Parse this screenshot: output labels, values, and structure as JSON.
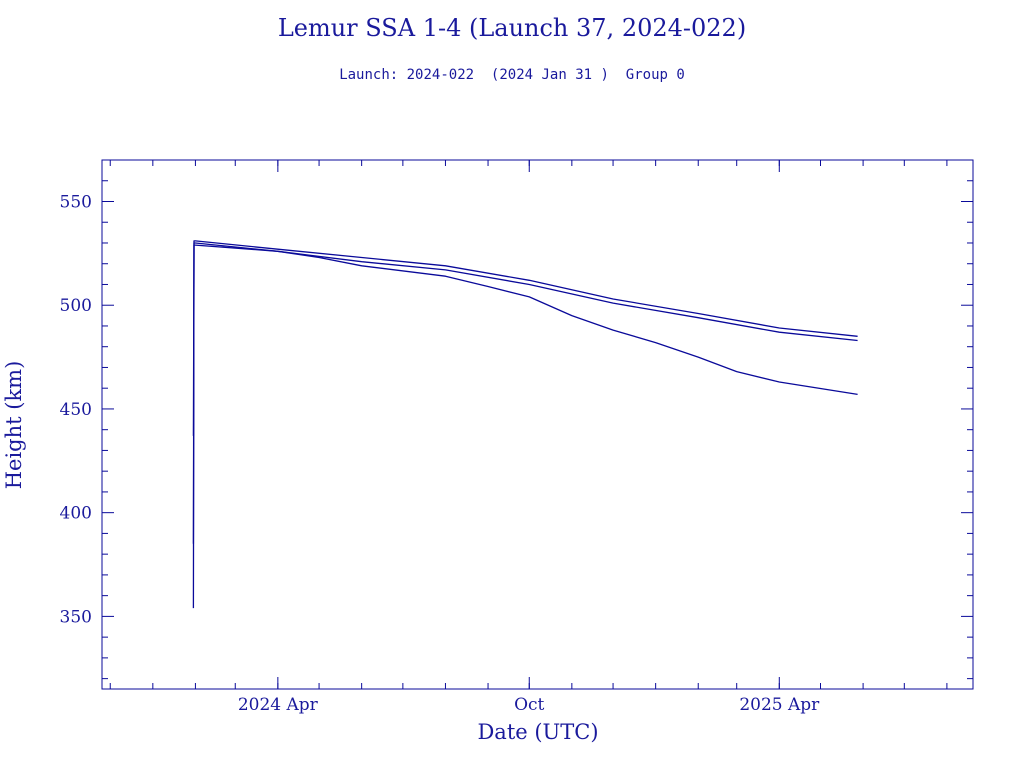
{
  "chart_data": {
    "type": "line",
    "title": "Lemur SSA 1-4 (Launch 37, 2024-022)",
    "subtitle": "Launch: 2024-022  (2024 Jan 31 )  Group 0",
    "xlabel": "Date (UTC)",
    "ylabel": "Height (km)",
    "xlim": [
      "2023-11-25",
      "2025-08-20"
    ],
    "ylim": [
      315,
      570
    ],
    "y_ticks": [
      350,
      400,
      450,
      500,
      550
    ],
    "x_ticks": [
      {
        "date": "2024-04-01",
        "label": "2024 Apr"
      },
      {
        "date": "2024-10-01",
        "label": "Oct"
      },
      {
        "date": "2025-04-01",
        "label": "2025 Apr"
      }
    ],
    "grid": false,
    "series": [
      {
        "x": [
          "2024-01-31",
          "2024-01-31",
          "2024-02-01",
          "2024-04-01",
          "2024-06-01",
          "2024-08-01",
          "2024-10-01",
          "2024-12-01",
          "2025-02-01",
          "2025-04-01",
          "2025-05-28"
        ],
        "y": [
          354,
          531,
          531,
          527,
          523,
          519,
          512,
          503,
          496,
          489,
          485
        ]
      },
      {
        "x": [
          "2024-01-31",
          "2024-01-31",
          "2024-02-01",
          "2024-04-01",
          "2024-06-01",
          "2024-08-01",
          "2024-10-01",
          "2024-12-01",
          "2025-02-01",
          "2025-04-01",
          "2025-05-28"
        ],
        "y": [
          385,
          530,
          530,
          526,
          521,
          517,
          510,
          501,
          494,
          487,
          483
        ]
      },
      {
        "x": [
          "2024-01-31",
          "2024-01-31",
          "2024-02-01",
          "2024-04-01",
          "2024-05-01",
          "2024-06-01",
          "2024-08-01",
          "2024-09-01",
          "2024-10-01",
          "2024-11-01",
          "2024-12-01",
          "2025-01-01",
          "2025-02-01",
          "2025-03-01",
          "2025-04-01",
          "2025-05-28"
        ],
        "y": [
          437,
          529,
          529,
          526,
          523,
          519,
          514,
          509,
          504,
          495,
          488,
          482,
          475,
          468,
          463,
          457
        ]
      }
    ],
    "line_color": "#0a0a9a"
  }
}
